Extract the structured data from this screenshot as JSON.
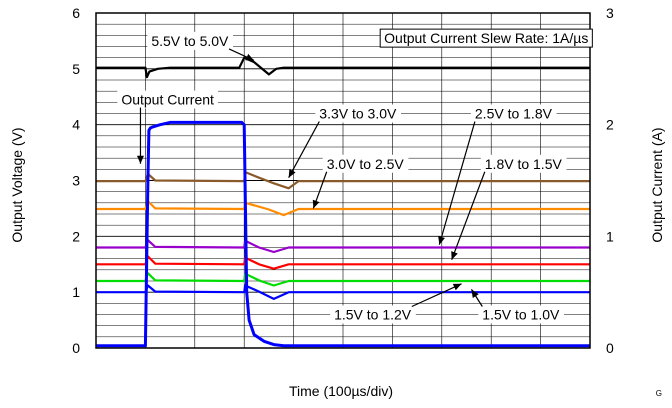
{
  "chart_data": {
    "type": "line",
    "title": "",
    "xlabel": "Time (100µs/div)",
    "ylabel": "Output Voltage (V)",
    "y2label": "Output Current (A)",
    "xlim": [
      0,
      10
    ],
    "ylim": [
      0,
      6
    ],
    "y2lim": [
      0,
      3
    ],
    "yticks": [
      "0",
      "1",
      "2",
      "3",
      "4",
      "5",
      "6"
    ],
    "y2ticks": [
      "0",
      "1",
      "2",
      "3"
    ],
    "grid": true,
    "corner_label": "G",
    "annotations": [
      {
        "text": "5.5V to 5.0V",
        "label_x": 1.9,
        "label_y": 5.5,
        "target_x": 3.2,
        "target_y": 5.15
      },
      {
        "text": "Output Current Slew Rate: 1A/µs",
        "label_x": 7.9,
        "label_y": 5.55,
        "boxed": true
      },
      {
        "text": "Output Current",
        "label_x": 1.45,
        "label_y": 4.45,
        "target_x": 0.9,
        "target_y": 3.3
      },
      {
        "text": "3.3V to 3.0V",
        "label_x": 5.3,
        "label_y": 4.2,
        "target_x": 3.9,
        "target_y": 3.05
      },
      {
        "text": "2.5V to 1.8V",
        "label_x": 8.45,
        "label_y": 4.2,
        "target_x": 6.95,
        "target_y": 1.85
      },
      {
        "text": "3.0V to 2.5V",
        "label_x": 5.45,
        "label_y": 3.3,
        "target_x": 4.4,
        "target_y": 2.5
      },
      {
        "text": "1.8V to 1.5V",
        "label_x": 8.65,
        "label_y": 3.3,
        "target_x": 7.2,
        "target_y": 1.58
      },
      {
        "text": "1.5V to 1.2V",
        "label_x": 5.6,
        "label_y": 0.6,
        "target_x": 7.4,
        "target_y": 1.15
      },
      {
        "text": "1.5V to 1.0V",
        "label_x": 8.6,
        "label_y": 0.6,
        "target_x": 7.6,
        "target_y": 1.05
      }
    ],
    "series": [
      {
        "color": "#000000",
        "axis": "left",
        "x": [
          0,
          1.0,
          1.03,
          1.08,
          1.25,
          1.5,
          2.9,
          3.0,
          3.2,
          3.5,
          3.65,
          3.8,
          10
        ],
        "y": [
          5.02,
          5.02,
          4.85,
          4.95,
          5.0,
          5.02,
          5.02,
          5.2,
          5.12,
          4.9,
          5.0,
          5.02,
          5.02
        ]
      },
      {
        "color": "#8B5A2B",
        "axis": "left",
        "x": [
          0,
          1.0,
          1.05,
          1.2,
          3.0,
          3.02,
          3.3,
          3.6,
          3.9,
          4.1,
          10
        ],
        "y": [
          2.99,
          2.99,
          3.12,
          3.0,
          2.99,
          3.15,
          3.05,
          2.95,
          2.86,
          2.99,
          2.99
        ]
      },
      {
        "color": "#FF8C00",
        "axis": "left",
        "x": [
          0,
          1.0,
          1.05,
          1.2,
          3.0,
          3.02,
          3.5,
          3.8,
          4.1,
          10
        ],
        "y": [
          2.49,
          2.49,
          2.63,
          2.5,
          2.49,
          2.6,
          2.48,
          2.38,
          2.49,
          2.49
        ],
        "note": "3.0V to 2.5V"
      },
      {
        "color": "#9900CC",
        "axis": "left",
        "x": [
          0,
          1.0,
          1.05,
          1.2,
          3.0,
          3.02,
          3.3,
          3.6,
          3.9,
          10
        ],
        "y": [
          1.8,
          1.8,
          1.93,
          1.81,
          1.8,
          1.92,
          1.8,
          1.72,
          1.8,
          1.8
        ]
      },
      {
        "color": "#FF0000",
        "axis": "left",
        "x": [
          0,
          1.0,
          1.05,
          1.2,
          3.0,
          3.02,
          3.3,
          3.6,
          3.9,
          10
        ],
        "y": [
          1.5,
          1.5,
          1.64,
          1.51,
          1.5,
          1.62,
          1.5,
          1.42,
          1.5,
          1.5
        ]
      },
      {
        "color": "#00DD00",
        "axis": "left",
        "x": [
          0,
          1.0,
          1.05,
          1.2,
          3.0,
          3.02,
          3.3,
          3.6,
          3.9,
          10
        ],
        "y": [
          1.2,
          1.2,
          1.34,
          1.21,
          1.2,
          1.33,
          1.21,
          1.12,
          1.2,
          1.2
        ]
      },
      {
        "color": "#0000FF",
        "axis": "left",
        "x": [
          0,
          1.0,
          1.05,
          1.2,
          3.0,
          3.02,
          3.3,
          3.6,
          3.9,
          10
        ],
        "y": [
          1.0,
          1.0,
          1.12,
          1.01,
          1.0,
          1.12,
          1.01,
          0.88,
          1.0,
          1.0
        ]
      },
      {
        "color": "#0000FF",
        "axis": "right",
        "width": 3,
        "x": [
          0,
          1.0,
          1.05,
          1.07,
          1.1,
          1.15,
          1.3,
          1.5,
          2.0,
          2.5,
          2.95,
          3.0,
          3.05,
          3.1,
          3.2,
          3.4,
          3.6,
          3.8,
          10
        ],
        "y": [
          0.02,
          0.02,
          1.5,
          1.95,
          1.97,
          1.98,
          2.0,
          2.02,
          2.02,
          2.02,
          2.02,
          2.0,
          0.5,
          0.25,
          0.12,
          0.06,
          0.03,
          0.02,
          0.02
        ]
      }
    ]
  }
}
